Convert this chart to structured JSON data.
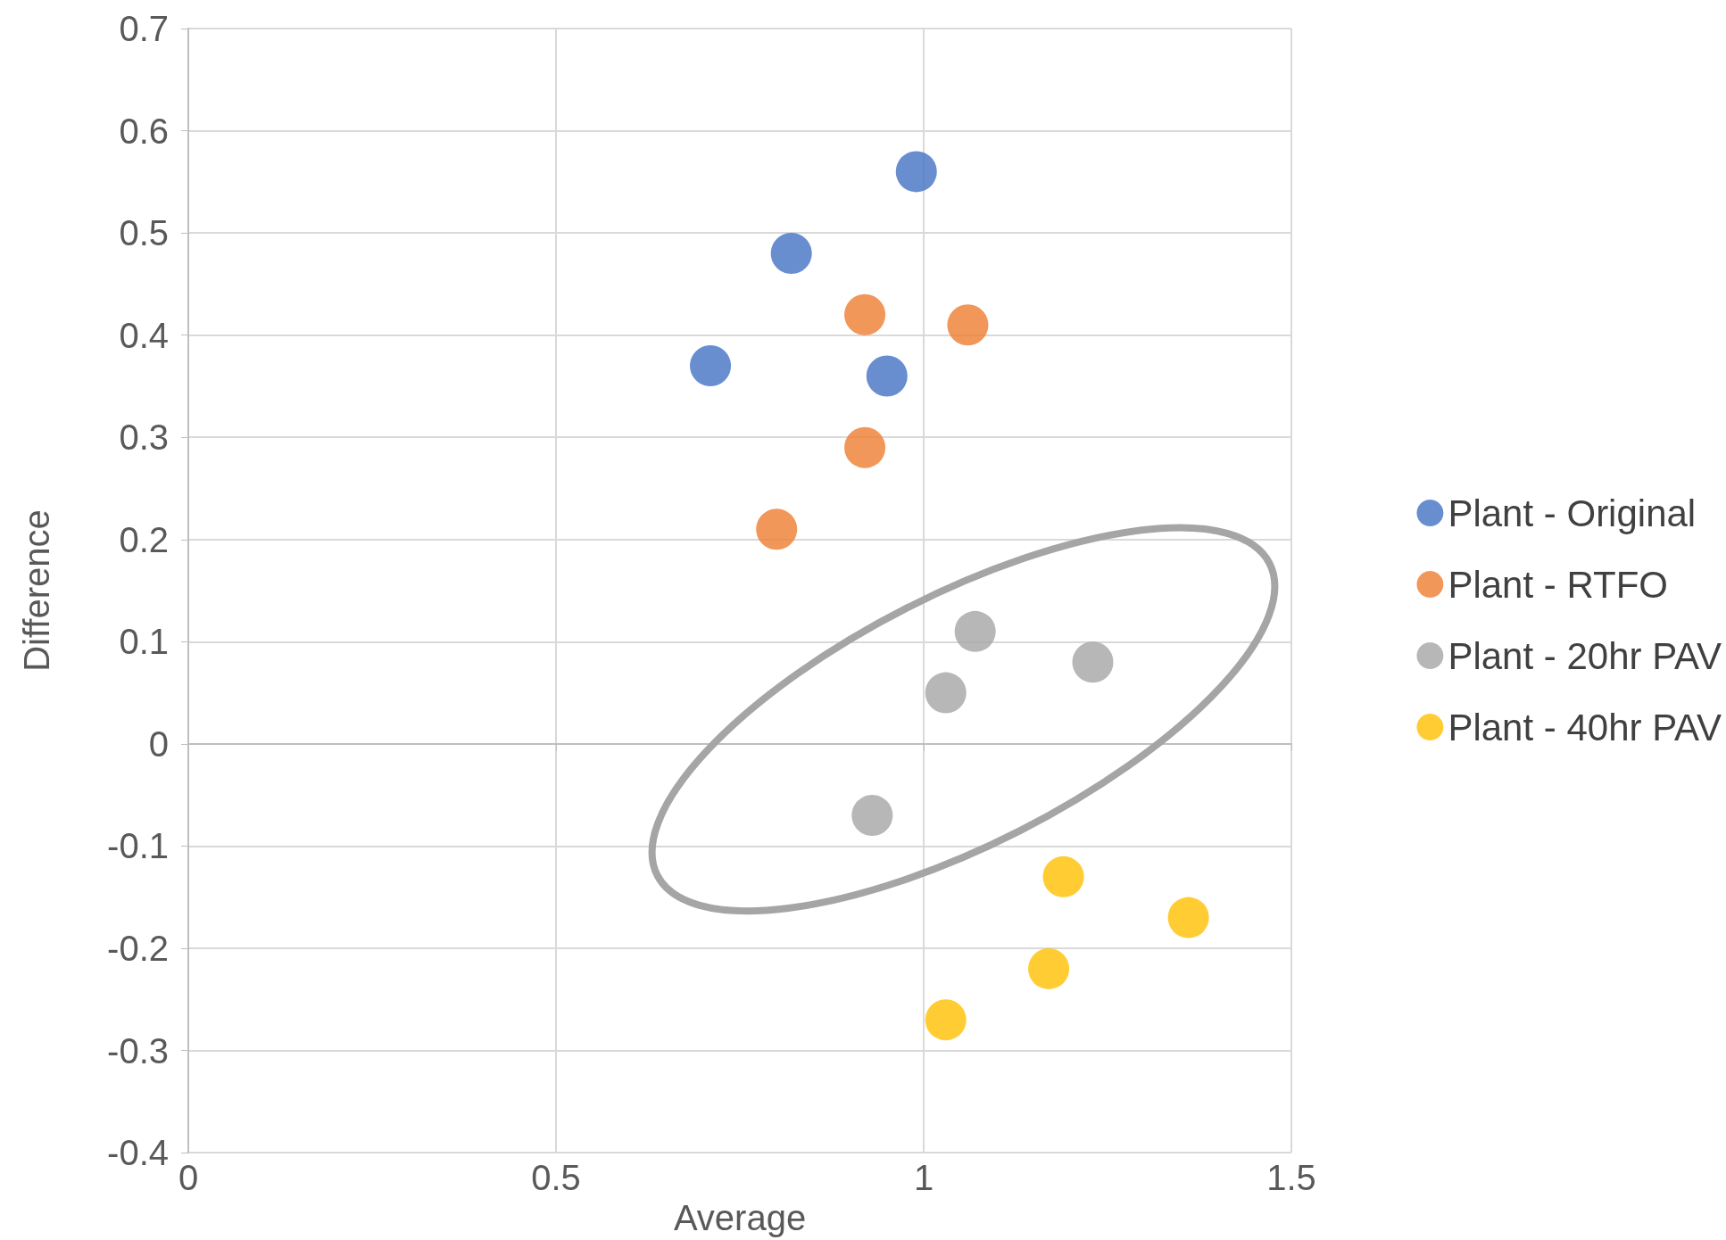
{
  "chart_data": {
    "type": "scatter",
    "xlabel": "Average",
    "ylabel": "Difference",
    "xlim": [
      0,
      1.5
    ],
    "xticks": [
      0,
      0.5,
      1,
      1.5
    ],
    "ylim": [
      -0.4,
      0.7
    ],
    "yticks": [
      -0.4,
      -0.3,
      -0.2,
      -0.1,
      0,
      0.1,
      0.2,
      0.3,
      0.4,
      0.5,
      0.6,
      0.7
    ],
    "grid": true,
    "legend": "right",
    "marker": "circle",
    "series": [
      {
        "name": "Plant - Original",
        "color": "#4472c4",
        "x": [
          0.99,
          0.82,
          0.71,
          0.95
        ],
        "values": [
          0.56,
          0.48,
          0.37,
          0.36
        ]
      },
      {
        "name": "Plant - RTFO",
        "color": "#ed7d31",
        "x": [
          0.92,
          1.06,
          0.92,
          0.8
        ],
        "values": [
          0.42,
          0.41,
          0.29,
          0.21
        ]
      },
      {
        "name": "Plant - 20hr PAV",
        "color": "#a5a5a5",
        "x": [
          1.07,
          1.23,
          1.03,
          0.93
        ],
        "values": [
          0.11,
          0.08,
          0.05,
          -0.07
        ]
      },
      {
        "name": "Plant - 40hr PAV",
        "color": "#ffc000",
        "x": [
          1.19,
          1.36,
          1.17,
          1.03
        ],
        "values": [
          -0.13,
          -0.17,
          -0.22,
          -0.27
        ]
      }
    ]
  }
}
